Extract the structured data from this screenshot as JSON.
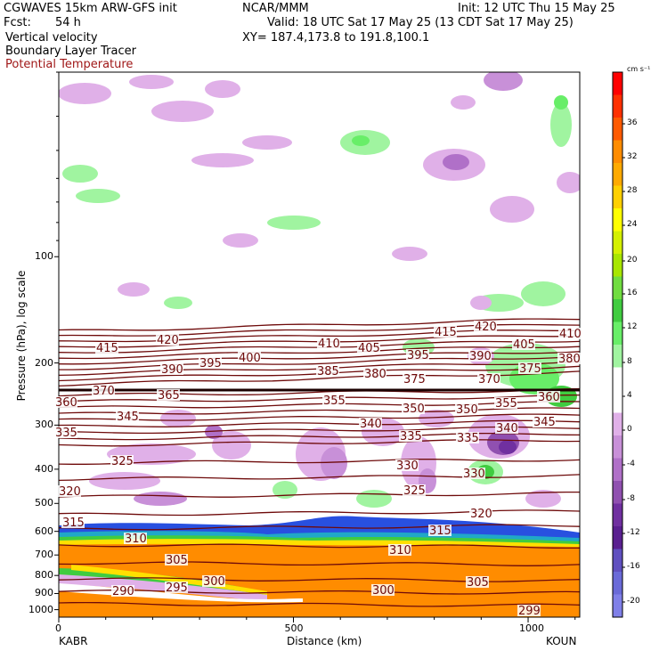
{
  "header": {
    "model": "CGWAVES 15km ARW-GFS init",
    "org": "NCAR/MMM",
    "init": "Init: 12 UTC Thu 15 May 25",
    "fcst_label": "Fcst:",
    "fcst_value": "54 h",
    "valid": "Valid: 18 UTC Sat 17 May 25 (13 CDT Sat 17 May 25)",
    "field1": "Vertical velocity",
    "field2": "Boundary Layer Tracer",
    "field3": "Potential Temperature",
    "xy": "XY= 187.4,173.8 to 191.8,100.1"
  },
  "colors": {
    "theta_line": "#6e0a0a",
    "tracer_orange": "#ff8c00",
    "text_red": "#a01818"
  },
  "chart_data": {
    "type": "heatmap",
    "title": "Vertical velocity / Boundary Layer Tracer / Potential Temperature",
    "xlabel": "Distance (km)",
    "ylabel": "Pressure (hPa), log scale",
    "x_ticks": [
      0,
      500,
      1000
    ],
    "x_end_labels": {
      "left": "KABR",
      "right": "KOUN"
    },
    "y_ticks": [
      100,
      200,
      300,
      400,
      500,
      600,
      700,
      800,
      900,
      1000
    ],
    "colorbar": {
      "unit": "cm s⁻¹",
      "ticks": [
        36,
        32,
        28,
        24,
        20,
        16,
        12,
        8,
        4,
        0,
        -4,
        -8,
        -12,
        -16,
        -20
      ],
      "colors": [
        "#ff0000",
        "#ff3000",
        "#ff5a00",
        "#ff8c00",
        "#ffaa00",
        "#ffd000",
        "#ffff00",
        "#d4f000",
        "#a8e600",
        "#70dd40",
        "#40cc40",
        "#68ee68",
        "#a0f4a0",
        "#ffffff",
        "#ffffff",
        "#e0b0e8",
        "#c890d8",
        "#b070c8",
        "#9050b0",
        "#7030a0",
        "#5a2090",
        "#6050c0",
        "#6a6ad8",
        "#8080e8"
      ]
    },
    "theta_labels": [
      {
        "t": "415",
        "x": 108,
        "y": 395
      },
      {
        "t": "420",
        "x": 176,
        "y": 386
      },
      {
        "t": "410",
        "x": 357,
        "y": 390
      },
      {
        "t": "405",
        "x": 402,
        "y": 395
      },
      {
        "t": "415",
        "x": 488,
        "y": 377
      },
      {
        "t": "420",
        "x": 533,
        "y": 371
      },
      {
        "t": "405",
        "x": 576,
        "y": 391
      },
      {
        "t": "410",
        "x": 628,
        "y": 379
      },
      {
        "t": "390",
        "x": 181,
        "y": 419
      },
      {
        "t": "395",
        "x": 224,
        "y": 412
      },
      {
        "t": "400",
        "x": 268,
        "y": 406
      },
      {
        "t": "385",
        "x": 356,
        "y": 421
      },
      {
        "t": "380",
        "x": 409,
        "y": 424
      },
      {
        "t": "395",
        "x": 457,
        "y": 403
      },
      {
        "t": "375",
        "x": 453,
        "y": 430
      },
      {
        "t": "390",
        "x": 527,
        "y": 404
      },
      {
        "t": "370",
        "x": 537,
        "y": 430
      },
      {
        "t": "375",
        "x": 583,
        "y": 418
      },
      {
        "t": "380",
        "x": 627,
        "y": 407
      },
      {
        "t": "370",
        "x": 104,
        "y": 443
      },
      {
        "t": "365",
        "x": 177,
        "y": 448
      },
      {
        "t": "360",
        "x": 62,
        "y": 456
      },
      {
        "t": "355",
        "x": 363,
        "y": 454
      },
      {
        "t": "360",
        "x": 604,
        "y": 450
      },
      {
        "t": "355",
        "x": 556,
        "y": 457
      },
      {
        "t": "350",
        "x": 452,
        "y": 463
      },
      {
        "t": "350",
        "x": 512,
        "y": 464
      },
      {
        "t": "345",
        "x": 131,
        "y": 472
      },
      {
        "t": "340",
        "x": 404,
        "y": 480
      },
      {
        "t": "345",
        "x": 599,
        "y": 478
      },
      {
        "t": "340",
        "x": 557,
        "y": 485
      },
      {
        "t": "335",
        "x": 62,
        "y": 490
      },
      {
        "t": "335",
        "x": 449,
        "y": 494
      },
      {
        "t": "335",
        "x": 513,
        "y": 496
      },
      {
        "t": "325",
        "x": 125,
        "y": 522
      },
      {
        "t": "330",
        "x": 445,
        "y": 527
      },
      {
        "t": "330",
        "x": 520,
        "y": 536
      },
      {
        "t": "325",
        "x": 453,
        "y": 555
      },
      {
        "t": "320",
        "x": 66,
        "y": 556
      },
      {
        "t": "320",
        "x": 528,
        "y": 581
      },
      {
        "t": "315",
        "x": 70,
        "y": 591
      },
      {
        "t": "315",
        "x": 482,
        "y": 600
      },
      {
        "t": "310",
        "x": 140,
        "y": 609
      },
      {
        "t": "310",
        "x": 437,
        "y": 622
      },
      {
        "t": "305",
        "x": 186,
        "y": 633
      },
      {
        "t": "305",
        "x": 524,
        "y": 658
      },
      {
        "t": "300",
        "x": 228,
        "y": 657
      },
      {
        "t": "300",
        "x": 418,
        "y": 667
      },
      {
        "t": "295",
        "x": 186,
        "y": 664
      },
      {
        "t": "290",
        "x": 126,
        "y": 668
      },
      {
        "t": "299",
        "x": 582,
        "y": 690
      }
    ]
  }
}
